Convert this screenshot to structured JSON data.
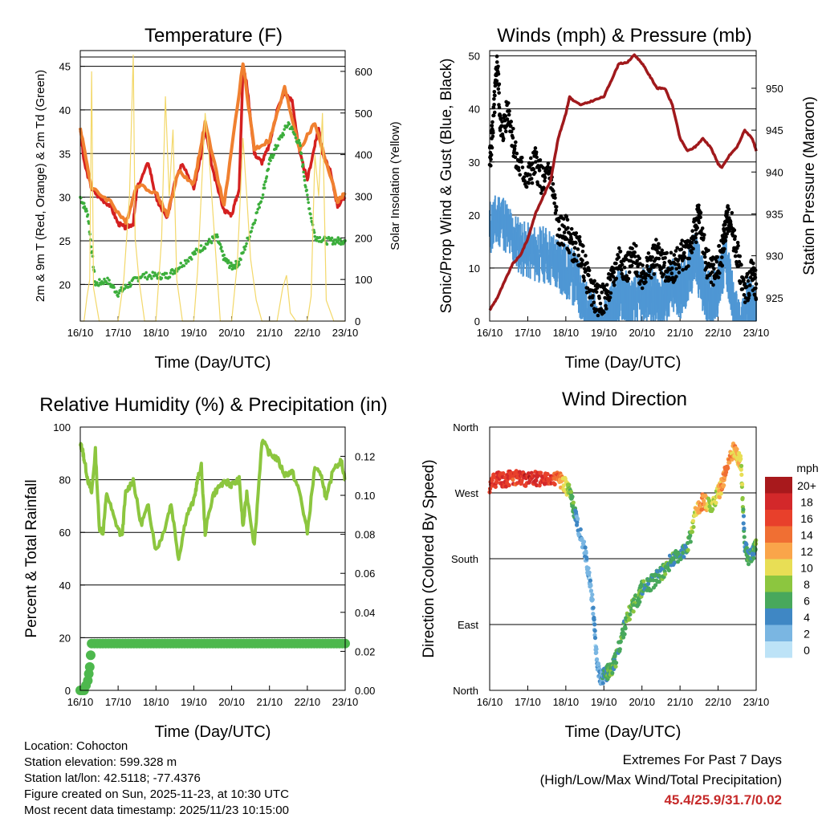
{
  "chart_data": [
    {
      "type": "line",
      "title": "Temperature (F)",
      "xlabel": "Time (Day/UTC)",
      "ylabel": "2m & 9m T (Red, Orange) & 2m Td (Green)",
      "y2label": "Solar Insolation (Yellow)",
      "xticks": [
        "16/10",
        "17/10",
        "18/10",
        "19/10",
        "20/10",
        "21/10",
        "22/10",
        "23/10"
      ],
      "xlim": [
        0,
        7
      ],
      "ylim": [
        15.8,
        46.8
      ],
      "yticks": [
        20,
        25,
        30,
        35,
        40,
        45
      ],
      "y2lim": [
        0,
        650
      ],
      "y2ticks": [
        0,
        100,
        200,
        300,
        400,
        500,
        600
      ],
      "series": [
        {
          "name": "2m T",
          "color": "#d42020",
          "x": [
            0,
            0.1,
            0.3,
            0.5,
            0.8,
            1.0,
            1.2,
            1.4,
            1.5,
            1.8,
            2.0,
            2.1,
            2.3,
            2.5,
            2.7,
            3.0,
            3.2,
            3.3,
            3.5,
            3.8,
            4.0,
            4.2,
            4.3,
            4.4,
            4.6,
            4.8,
            5.0,
            5.2,
            5.4,
            5.6,
            5.8,
            6.0,
            6.2,
            6.3,
            6.4,
            6.6,
            6.8,
            7.0
          ],
          "values": [
            38,
            34,
            31,
            30,
            29,
            27,
            26.5,
            27,
            31,
            34,
            30,
            29,
            27.5,
            32,
            34,
            31,
            35,
            38,
            33,
            28.5,
            28,
            31,
            45,
            43,
            35,
            34,
            36,
            40,
            42,
            41,
            35,
            32,
            36,
            38,
            35,
            33,
            29,
            30
          ]
        },
        {
          "name": "9m T",
          "color": "#f08030",
          "x": [
            0,
            0.3,
            0.8,
            1.2,
            1.5,
            2.0,
            2.3,
            2.6,
            3.0,
            3.3,
            3.8,
            4.3,
            4.6,
            5.0,
            5.4,
            5.8,
            6.2,
            6.4,
            6.8,
            7.0
          ],
          "values": [
            38,
            31,
            29.5,
            27,
            31.5,
            30.5,
            28,
            33,
            31.5,
            38.5,
            29,
            45.3,
            35.5,
            36.5,
            42.5,
            35.5,
            38.5,
            35.5,
            29.5,
            30.5
          ]
        },
        {
          "name": "2m Td",
          "color": "#3cae3c",
          "x": [
            0,
            0.2,
            0.4,
            0.7,
            1.0,
            1.3,
            1.6,
            2.0,
            2.3,
            2.6,
            3.0,
            3.3,
            3.6,
            3.8,
            4.0,
            4.2,
            4.5,
            4.8,
            5.0,
            5.2,
            5.5,
            5.8,
            6.0,
            6.2,
            6.5,
            6.8,
            7.0
          ],
          "values": [
            30,
            28,
            20,
            20.5,
            19,
            20,
            21,
            21,
            21,
            22,
            23.5,
            24.5,
            25.5,
            23,
            22,
            22.5,
            26,
            30,
            34,
            36,
            38.5,
            36,
            30,
            25.5,
            25,
            25,
            25
          ]
        },
        {
          "name": "Solar Insolation",
          "color": "#f3d86a",
          "axis": "y2",
          "x": [
            0,
            0.1,
            0.18,
            0.25,
            0.3,
            0.35,
            0.5,
            1.0,
            1.15,
            1.3,
            1.4,
            1.45,
            1.55,
            1.7,
            2.0,
            2.15,
            2.25,
            2.35,
            2.45,
            2.55,
            2.7,
            3.0,
            3.1,
            3.3,
            3.4,
            3.55,
            3.7,
            4.0,
            4.15,
            4.3,
            4.4,
            4.5,
            4.65,
            4.8,
            5.0,
            5.2,
            5.35,
            5.45,
            5.55,
            5.7,
            6.0,
            6.1,
            6.2,
            6.3,
            6.4,
            6.5,
            6.7,
            7.0
          ],
          "values": [
            0,
            0,
            60,
            100,
            600,
            80,
            0,
            0,
            100,
            300,
            640,
            200,
            100,
            0,
            0,
            200,
            540,
            300,
            460,
            100,
            0,
            0,
            120,
            500,
            400,
            200,
            0,
            0,
            140,
            440,
            300,
            150,
            50,
            0,
            0,
            0,
            80,
            110,
            20,
            0,
            0,
            60,
            400,
            300,
            500,
            50,
            0,
            0
          ]
        }
      ]
    },
    {
      "type": "scatter",
      "title": "Winds (mph) & Pressure (mb)",
      "xlabel": "Time (Day/UTC)",
      "ylabel": "Sonic/Prop Wind & Gust (Blue, Black)",
      "y2label": "Station Pressure (Maroon)",
      "xticks": [
        "16/10",
        "17/10",
        "18/10",
        "19/10",
        "20/10",
        "21/10",
        "22/10",
        "23/10"
      ],
      "xlim": [
        0,
        7
      ],
      "ylim": [
        0,
        51
      ],
      "yticks": [
        0,
        10,
        20,
        30,
        40,
        50
      ],
      "y2lim": [
        922.2,
        954.5
      ],
      "y2ticks": [
        925,
        930,
        935,
        940,
        945,
        950
      ],
      "series": [
        {
          "name": "Sonic/Prop Wind",
          "color": "#4f97d4",
          "x": [
            0,
            0.3,
            0.6,
            0.9,
            1.2,
            1.5,
            1.8,
            2.0,
            2.3,
            2.5,
            2.7,
            2.9,
            3.1,
            3.3,
            3.5,
            3.7,
            4.0,
            4.2,
            4.4,
            4.6,
            4.8,
            5.0,
            5.2,
            5.4,
            5.6,
            5.8,
            6.0,
            6.2,
            6.4,
            6.6,
            6.8,
            7.0
          ],
          "values": [
            20,
            22,
            18,
            16,
            15,
            15,
            13,
            12,
            10,
            5,
            3,
            0,
            3,
            6,
            8,
            5,
            7,
            8,
            6,
            7,
            9,
            8,
            10,
            15,
            9,
            6,
            9,
            15,
            5,
            0,
            6,
            4
          ]
        },
        {
          "name": "Gust",
          "color": "#000000",
          "x": [
            0,
            0.1,
            0.2,
            0.3,
            0.5,
            0.7,
            1.0,
            1.2,
            1.4,
            1.6,
            1.8,
            2.0,
            2.2,
            2.4,
            2.6,
            2.8,
            3.0,
            3.2,
            3.4,
            3.6,
            3.8,
            4.0,
            4.2,
            4.4,
            4.6,
            4.8,
            5.0,
            5.2,
            5.4,
            5.5,
            5.7,
            5.9,
            6.1,
            6.2,
            6.3,
            6.5,
            6.7,
            6.9,
            7.0
          ],
          "values": [
            30,
            38,
            49,
            35,
            40,
            30,
            27,
            30,
            26,
            28,
            17,
            17,
            14,
            13,
            7,
            4,
            4,
            7,
            12,
            10,
            12,
            9,
            10,
            13,
            10,
            10,
            12,
            13,
            17,
            20,
            11,
            9,
            13,
            18,
            20,
            13,
            5,
            9,
            7
          ]
        },
        {
          "name": "Station Pressure",
          "color": "#a0191c",
          "axis": "y2",
          "x": [
            0,
            0.2,
            0.4,
            0.6,
            0.8,
            1.0,
            1.2,
            1.4,
            1.6,
            1.8,
            2.0,
            2.1,
            2.2,
            2.4,
            2.7,
            3.0,
            3.2,
            3.4,
            3.6,
            3.8,
            4.0,
            4.2,
            4.4,
            4.6,
            4.8,
            5.0,
            5.2,
            5.4,
            5.6,
            5.8,
            6.0,
            6.1,
            6.3,
            6.5,
            6.7,
            6.9,
            7.0
          ],
          "values": [
            923.5,
            925,
            927,
            929,
            930,
            932,
            935,
            937,
            939,
            944,
            947,
            949,
            948.5,
            948,
            948.5,
            949,
            951,
            953,
            953,
            954,
            953,
            951.5,
            950,
            950,
            948,
            944,
            942.5,
            943,
            944,
            943,
            941,
            940.5,
            942,
            943,
            945,
            944,
            942.5
          ]
        }
      ]
    },
    {
      "type": "line",
      "title": "Relative Humidity (%) & Precipitation (in)",
      "xlabel": "Time (Day/UTC)",
      "ylabel": "Percent & Total Rainfall",
      "xticks": [
        "16/10",
        "17/10",
        "18/10",
        "19/10",
        "20/10",
        "21/10",
        "22/10",
        "23/10"
      ],
      "xlim": [
        0,
        7
      ],
      "ylim": [
        0,
        100
      ],
      "yticks": [
        0,
        20,
        40,
        60,
        80,
        100
      ],
      "y2lim": [
        0,
        0.135
      ],
      "y2ticks": [
        0.0,
        0.02,
        0.04,
        0.06,
        0.08,
        0.1,
        0.12
      ],
      "series": [
        {
          "name": "Relative Humidity",
          "color": "#8cc63f",
          "x": [
            0,
            0.05,
            0.1,
            0.2,
            0.3,
            0.4,
            0.5,
            0.6,
            0.7,
            0.9,
            1.1,
            1.2,
            1.4,
            1.6,
            1.8,
            2.0,
            2.2,
            2.4,
            2.6,
            2.8,
            3.0,
            3.1,
            3.2,
            3.3,
            3.5,
            3.7,
            3.9,
            4.0,
            4.2,
            4.3,
            4.4,
            4.6,
            4.8,
            5.0,
            5.2,
            5.4,
            5.6,
            5.8,
            6.0,
            6.2,
            6.4,
            6.5,
            6.7,
            6.9,
            7.0
          ],
          "values": [
            93,
            92,
            88,
            80,
            75,
            91,
            62,
            60,
            75,
            65,
            58,
            75,
            80,
            63,
            70,
            53,
            60,
            71,
            50,
            66,
            72,
            80,
            85,
            60,
            74,
            78,
            79,
            78,
            80,
            62,
            75,
            55,
            95,
            90,
            88,
            82,
            83,
            75,
            60,
            85,
            80,
            72,
            85,
            87,
            80
          ]
        },
        {
          "name": "Total Rainfall",
          "color": "#4db84d",
          "axis": "y2",
          "x": [
            0,
            0.1,
            0.2,
            0.25,
            0.3,
            7
          ],
          "values": [
            0,
            0,
            0.005,
            0.012,
            0.024,
            0.024
          ]
        }
      ]
    },
    {
      "type": "scatter",
      "title": "Wind Direction",
      "xlabel": "Time (Day/UTC)",
      "ylabel": "Direction (Colored By Speed)",
      "xticks": [
        "16/10",
        "17/10",
        "18/10",
        "19/10",
        "20/10",
        "21/10",
        "22/10",
        "23/10"
      ],
      "xlim": [
        0,
        7
      ],
      "ylim": [
        0,
        360
      ],
      "ytick_labels": [
        "North",
        "East",
        "South",
        "West",
        "North"
      ],
      "yticks": [
        0,
        90,
        180,
        270,
        360
      ],
      "colorbar_title": "mph",
      "colorbar_labels": [
        "20+",
        "18",
        "16",
        "14",
        "12",
        "10",
        "8",
        "6",
        "4",
        "2",
        "0"
      ],
      "colorbar_colors": [
        "#a8191c",
        "#d3282a",
        "#e8402b",
        "#f06f33",
        "#faa54a",
        "#e8de55",
        "#8cc63f",
        "#48a85c",
        "#3f87c4",
        "#7ab6e2",
        "#bde3f7"
      ],
      "series": [
        {
          "name": "Direction",
          "x": [
            0,
            0.2,
            0.4,
            0.6,
            0.8,
            1.0,
            1.2,
            1.4,
            1.6,
            1.8,
            2.0,
            2.1,
            2.2,
            2.3,
            2.5,
            2.6,
            2.7,
            2.8,
            2.9,
            3.0,
            3.1,
            3.2,
            3.3,
            3.5,
            3.7,
            3.9,
            4.0,
            4.2,
            4.4,
            4.6,
            4.8,
            5.0,
            5.2,
            5.4,
            5.6,
            5.8,
            6.0,
            6.1,
            6.2,
            6.4,
            6.5,
            6.6,
            6.7,
            6.8,
            6.9,
            7.0
          ],
          "values": [
            280,
            290,
            288,
            292,
            290,
            288,
            290,
            287,
            288,
            290,
            280,
            270,
            250,
            230,
            190,
            160,
            120,
            50,
            15,
            20,
            25,
            30,
            40,
            80,
            110,
            125,
            140,
            145,
            155,
            165,
            180,
            185,
            195,
            240,
            260,
            250,
            270,
            280,
            300,
            330,
            320,
            310,
            200,
            180,
            185,
            200
          ],
          "speed": [
            16,
            17,
            18,
            16,
            17,
            18,
            18,
            17,
            16,
            14,
            10,
            8,
            6,
            3,
            2,
            2,
            2,
            2,
            3,
            5,
            6,
            7,
            6,
            6,
            7,
            6,
            6,
            6,
            5,
            6,
            6,
            5,
            6,
            10,
            14,
            8,
            10,
            12,
            14,
            12,
            11,
            10,
            4,
            6,
            5,
            7
          ]
        }
      ]
    }
  ],
  "info": {
    "location": "Location: Cohocton",
    "elevation": "Station elevation: 599.328 m",
    "latlon": "Station lat/lon: 42.5118; -77.4376",
    "created": "Figure created on Sun, 2025-11-23, at 10:30 UTC",
    "recent": "Most recent data timestamp: 2025/11/23 10:15:00"
  },
  "extremes": {
    "title": "Extremes For Past 7 Days",
    "subtitle": "(High/Low/Max Wind/Total Precipitation)",
    "values": "45.4/25.9/31.7/0.02"
  }
}
